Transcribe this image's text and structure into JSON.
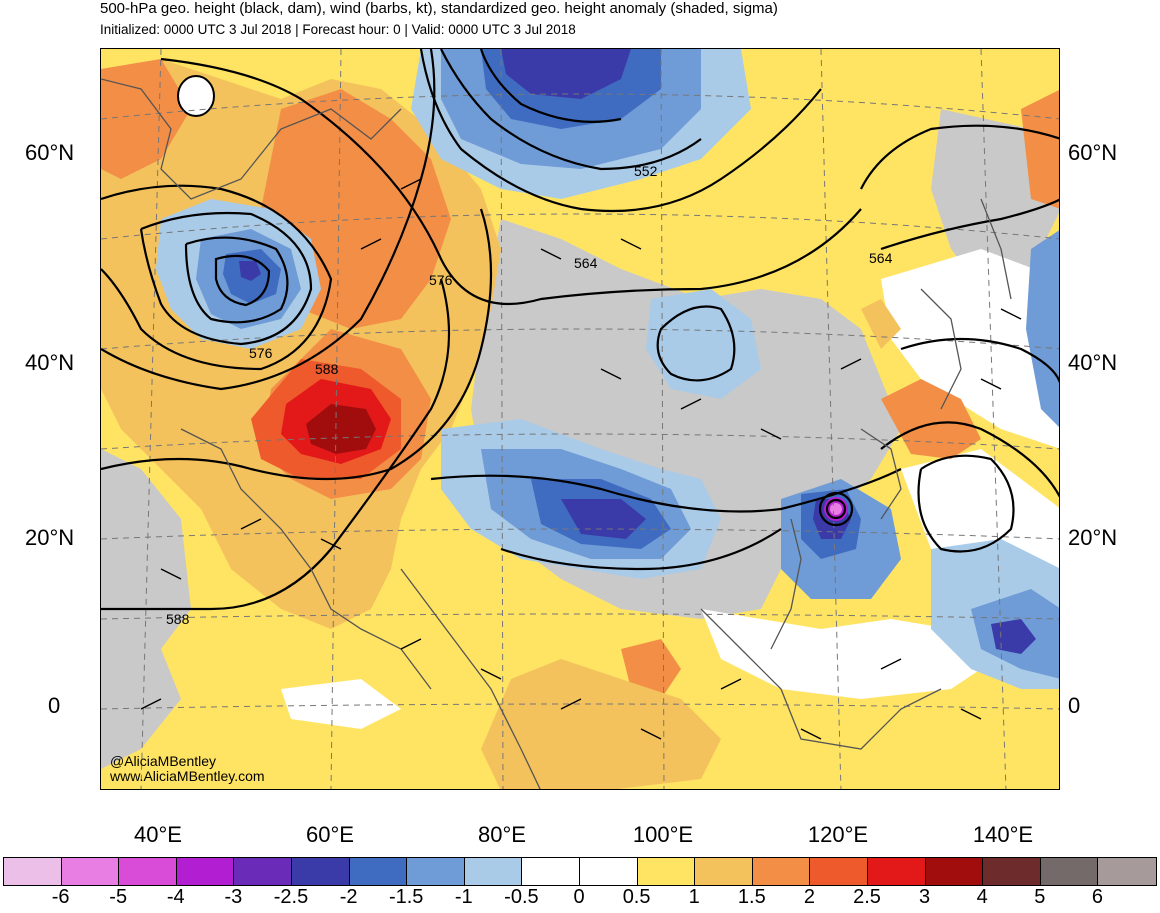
{
  "title": "500-hPa geo. height (black, dam), wind (barbs, kt), standardized geo. height anomaly (shaded, sigma)",
  "subtitle": "Initialized: 0000 UTC 3 Jul 2018 | Forecast hour: 0 | Valid: 0000 UTC 3 Jul 2018",
  "lat_labels": [
    "60°N",
    "40°N",
    "20°N",
    "0"
  ],
  "lon_labels": [
    "40°E",
    "60°E",
    "80°E",
    "100°E",
    "120°E",
    "140°E"
  ],
  "contour_labels": [
    "552",
    "564",
    "564",
    "576",
    "576",
    "588",
    "588"
  ],
  "credit": {
    "handle": "@AliciaMBentley",
    "site": "www.AliciaMBentley.com"
  },
  "colorbar": {
    "ticks": [
      "-6",
      "-5",
      "-4",
      "-3",
      "-2.5",
      "-2",
      "-1.5",
      "-1",
      "-0.5",
      "0",
      "0.5",
      "1",
      "1.5",
      "2",
      "2.5",
      "3",
      "4",
      "5",
      "6"
    ],
    "colors": [
      "#ebbfe8",
      "#e87de3",
      "#d84cd8",
      "#b21ed1",
      "#6a2cb8",
      "#3a3aa8",
      "#3f6cc0",
      "#6f9bd6",
      "#a9cbe8",
      "#ffffff",
      "#ffffff",
      "#ffe463",
      "#f4c25c",
      "#f28e46",
      "#ee5a2c",
      "#e31818",
      "#a10d0d",
      "#6e2b2b",
      "#746a6a",
      "#a69a9a"
    ]
  }
}
